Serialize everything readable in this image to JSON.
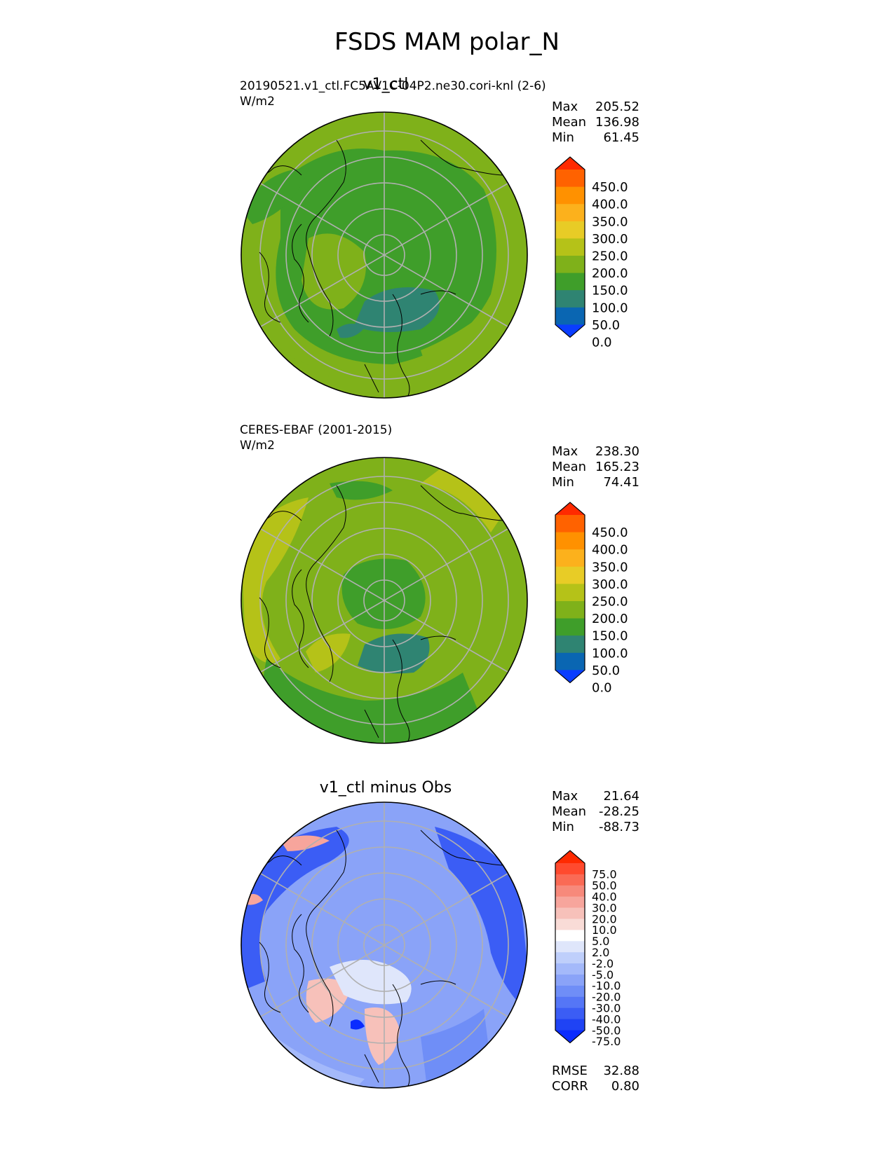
{
  "figure": {
    "title": "FSDS MAM polar_N"
  },
  "panels": [
    {
      "id": "test",
      "title": "v1_ctl",
      "left_line1": "20190521.v1_ctl.FC5AV1C-04P2.ne30.cori-knl (2-6)",
      "left_line2": "W/m2",
      "stats": [
        {
          "label": "Max",
          "value": "205.52"
        },
        {
          "label": "Mean",
          "value": "136.98"
        },
        {
          "label": "Min",
          "value": "61.45"
        }
      ]
    },
    {
      "id": "ref",
      "title": "",
      "left_line1": "CERES-EBAF (2001-2015)",
      "left_line2": "W/m2",
      "stats": [
        {
          "label": "Max",
          "value": "238.30"
        },
        {
          "label": "Mean",
          "value": "165.23"
        },
        {
          "label": "Min",
          "value": "74.41"
        }
      ]
    },
    {
      "id": "diff",
      "title": "v1_ctl minus Obs",
      "left_line1": "",
      "left_line2": "",
      "stats": [
        {
          "label": "Max",
          "value": "21.64"
        },
        {
          "label": "Mean",
          "value": "-28.25"
        },
        {
          "label": "Min",
          "value": "-88.73"
        }
      ],
      "metrics": [
        {
          "label": "RMSE",
          "value": "32.88"
        },
        {
          "label": "CORR",
          "value": "0.80"
        }
      ]
    }
  ],
  "colorbars": {
    "abs": {
      "ticks": [
        "450.0",
        "400.0",
        "350.0",
        "300.0",
        "250.0",
        "200.0",
        "150.0",
        "100.0",
        "50.0",
        "0.0"
      ],
      "colors": [
        "#ff2a00",
        "#ff6200",
        "#ff9100",
        "#fcb11c",
        "#e8cc26",
        "#b5c218",
        "#7fb11a",
        "#3f9e2a",
        "#2f8472",
        "#0a66b2",
        "#0a3dff"
      ]
    },
    "diff": {
      "ticks": [
        "75.0",
        "50.0",
        "40.0",
        "30.0",
        "20.0",
        "10.0",
        "5.0",
        "2.0",
        "-2.0",
        "-5.0",
        "-10.0",
        "-20.0",
        "-30.0",
        "-40.0",
        "-50.0",
        "-75.0"
      ],
      "colors": [
        "#ff2a00",
        "#ff4a2e",
        "#fa6a55",
        "#f7897b",
        "#f7a59c",
        "#f7c1ba",
        "#f9dcd7",
        "#ffffff",
        "#dfe6fb",
        "#bfcffb",
        "#a4b9fa",
        "#8aa3f8",
        "#6f8ef7",
        "#5576f6",
        "#3b5df5",
        "#1f43f4",
        "#0a2bff"
      ]
    }
  }
}
